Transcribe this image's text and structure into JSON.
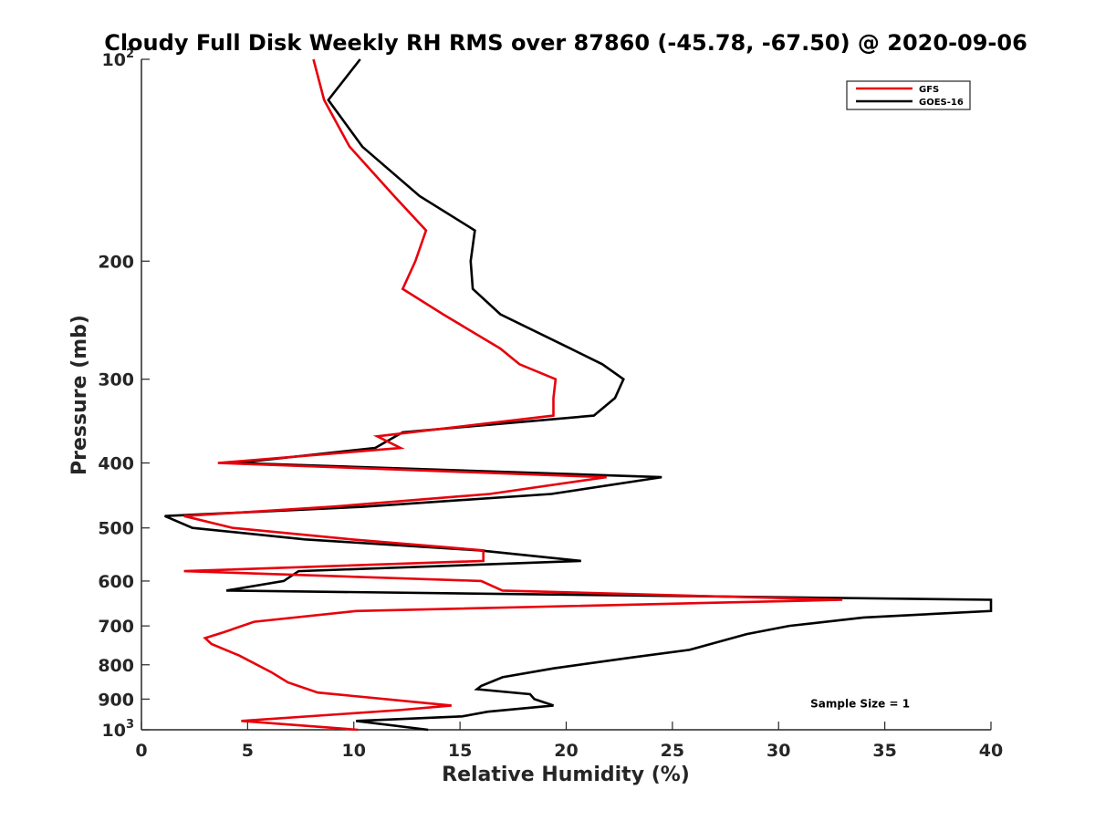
{
  "chart_data": {
    "type": "line",
    "title": "Cloudy Full Disk Weekly RH RMS over 87860 (-45.78, -67.50) @ 2020-09-06",
    "xlabel": "Relative Humidity (%)",
    "ylabel": "Pressure (mb)",
    "xlim": [
      0,
      40
    ],
    "ylim": [
      100,
      1000
    ],
    "y_scale": "log",
    "y_reversed": true,
    "grid": false,
    "legend_position": "top-right",
    "x_ticks": [
      {
        "value": 0,
        "label": "0"
      },
      {
        "value": 5,
        "label": "5"
      },
      {
        "value": 10,
        "label": "10"
      },
      {
        "value": 15,
        "label": "15"
      },
      {
        "value": 20,
        "label": "20"
      },
      {
        "value": 25,
        "label": "25"
      },
      {
        "value": 30,
        "label": "30"
      },
      {
        "value": 35,
        "label": "35"
      },
      {
        "value": 40,
        "label": "40"
      }
    ],
    "y_ticks": [
      {
        "value": 100,
        "base": "10",
        "exp": "2"
      },
      {
        "value": 200,
        "label": "200"
      },
      {
        "value": 300,
        "label": "300"
      },
      {
        "value": 400,
        "label": "400"
      },
      {
        "value": 500,
        "label": "500"
      },
      {
        "value": 600,
        "label": "600"
      },
      {
        "value": 700,
        "label": "700"
      },
      {
        "value": 800,
        "label": "800"
      },
      {
        "value": 900,
        "label": "900"
      },
      {
        "value": 1000,
        "base": "10",
        "exp": "3"
      }
    ],
    "series": [
      {
        "name": "GFS",
        "color": "#e8000b",
        "points": [
          [
            8.1,
            100
          ],
          [
            8.6,
            115
          ],
          [
            9.8,
            135
          ],
          [
            11.9,
            160
          ],
          [
            13.4,
            180
          ],
          [
            12.9,
            200
          ],
          [
            12.3,
            220
          ],
          [
            14.2,
            240
          ],
          [
            16.9,
            270
          ],
          [
            17.8,
            285
          ],
          [
            19.5,
            300
          ],
          [
            19.4,
            320
          ],
          [
            19.4,
            340
          ],
          [
            11.1,
            365
          ],
          [
            12.2,
            380
          ],
          [
            3.6,
            400
          ],
          [
            21.9,
            420
          ],
          [
            16.4,
            445
          ],
          [
            8.9,
            465
          ],
          [
            2.0,
            480
          ],
          [
            4.3,
            500
          ],
          [
            9.9,
            520
          ],
          [
            16.1,
            540
          ],
          [
            16.1,
            560
          ],
          [
            2.0,
            580
          ],
          [
            16.0,
            600
          ],
          [
            17.0,
            620
          ],
          [
            33.0,
            640
          ],
          [
            10.1,
            665
          ],
          [
            5.3,
            690
          ],
          [
            3.9,
            715
          ],
          [
            3.0,
            730
          ],
          [
            3.3,
            745
          ],
          [
            4.6,
            775
          ],
          [
            6.1,
            820
          ],
          [
            6.9,
            850
          ],
          [
            8.3,
            880
          ],
          [
            14.6,
            920
          ],
          [
            12.1,
            935
          ],
          [
            4.7,
            970
          ],
          [
            10.2,
            1000
          ]
        ]
      },
      {
        "name": "GOES-16",
        "color": "#000000",
        "points": [
          [
            10.3,
            100
          ],
          [
            8.8,
            115
          ],
          [
            10.4,
            135
          ],
          [
            13.1,
            160
          ],
          [
            15.7,
            180
          ],
          [
            15.5,
            200
          ],
          [
            15.6,
            220
          ],
          [
            16.9,
            240
          ],
          [
            20.2,
            270
          ],
          [
            21.7,
            285
          ],
          [
            22.7,
            300
          ],
          [
            22.3,
            320
          ],
          [
            21.3,
            340
          ],
          [
            12.3,
            360
          ],
          [
            11.0,
            380
          ],
          [
            4.5,
            400
          ],
          [
            24.5,
            420
          ],
          [
            19.3,
            445
          ],
          [
            10.4,
            465
          ],
          [
            1.1,
            480
          ],
          [
            2.4,
            500
          ],
          [
            7.7,
            520
          ],
          [
            15.9,
            540
          ],
          [
            20.7,
            560
          ],
          [
            7.4,
            580
          ],
          [
            6.7,
            600
          ],
          [
            4.0,
            620
          ],
          [
            40.0,
            640
          ],
          [
            40.0,
            665
          ],
          [
            34.0,
            680
          ],
          [
            30.5,
            700
          ],
          [
            28.5,
            720
          ],
          [
            26.8,
            745
          ],
          [
            25.8,
            760
          ],
          [
            23.1,
            780
          ],
          [
            19.4,
            810
          ],
          [
            17.0,
            835
          ],
          [
            16.0,
            860
          ],
          [
            15.8,
            870
          ],
          [
            18.3,
            885
          ],
          [
            18.5,
            900
          ],
          [
            19.4,
            920
          ],
          [
            16.3,
            940
          ],
          [
            15.1,
            955
          ],
          [
            10.1,
            970
          ],
          [
            13.5,
            1000
          ]
        ]
      }
    ],
    "annotations": [
      {
        "text": "Sample Size = 1",
        "x": 31.5,
        "y": 915
      }
    ]
  }
}
